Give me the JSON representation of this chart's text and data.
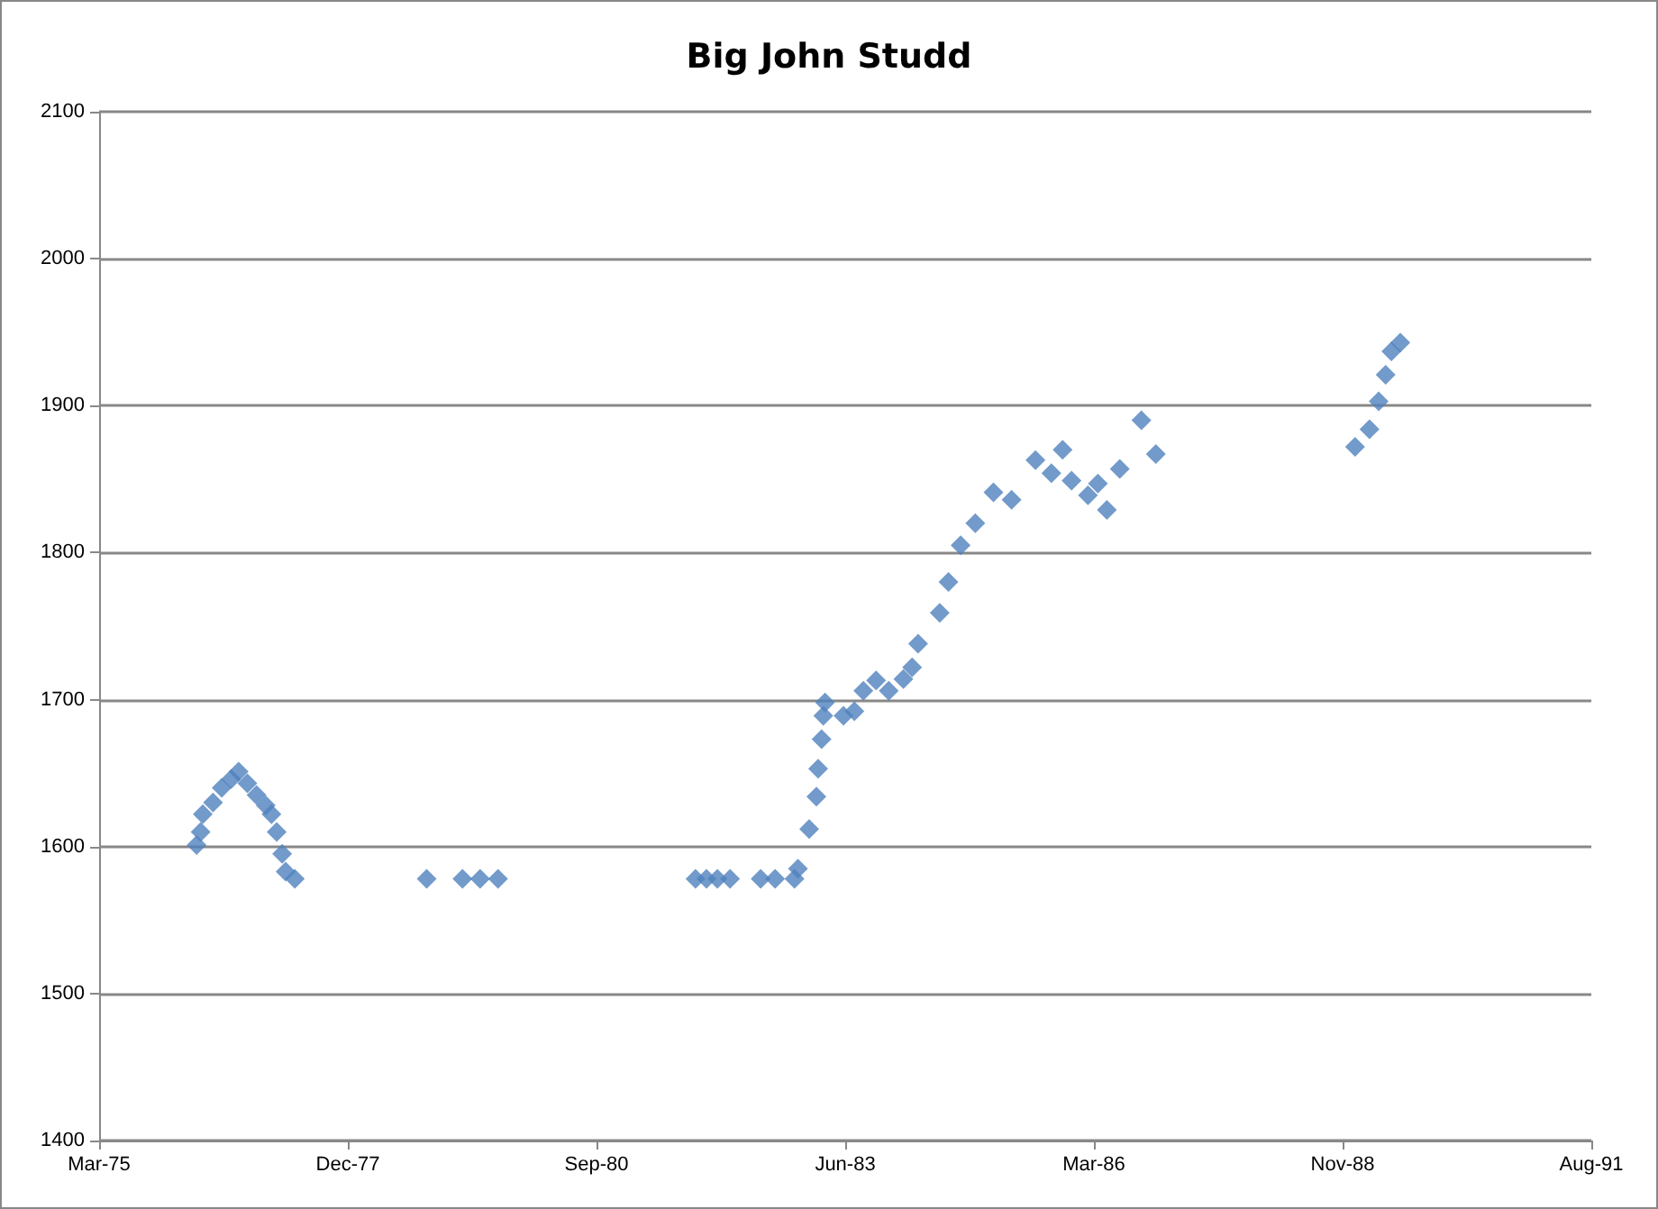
{
  "chart_data": {
    "type": "scatter",
    "title": "Big John Studd",
    "marker": "diamond",
    "grid": "y",
    "xlim": [
      "1975-03-20",
      "1991-08-23"
    ],
    "xticks": [
      {
        "value": "1975-03-20",
        "label": "Mar-75"
      },
      {
        "value": "1977-12-14",
        "label": "Dec-77"
      },
      {
        "value": "1980-09-09",
        "label": "Sep-80"
      },
      {
        "value": "1983-06-06",
        "label": "Jun-83"
      },
      {
        "value": "1986-03-02",
        "label": "Mar-86"
      },
      {
        "value": "1988-11-26",
        "label": "Nov-88"
      },
      {
        "value": "1991-08-23",
        "label": "Aug-91"
      }
    ],
    "ylim": [
      1400,
      2100
    ],
    "yticks": [
      1400,
      1500,
      1600,
      1700,
      1800,
      1900,
      2000,
      2100
    ],
    "series": [
      {
        "color": "#4f81bd",
        "x": [
          "1976-04-15",
          "1976-05-01",
          "1976-05-10",
          "1976-06-20",
          "1976-07-25",
          "1976-09-01",
          "1976-10-01",
          "1976-11-05",
          "1976-12-12",
          "1977-01-18",
          "1977-02-10",
          "1977-03-03",
          "1977-03-25",
          "1977-04-08",
          "1977-05-15",
          "1978-10-27",
          "1979-03-20",
          "1979-05-30",
          "1979-08-10",
          "1981-10-12",
          "1981-11-25",
          "1982-01-08",
          "1982-02-28",
          "1982-07-01",
          "1982-08-28",
          "1982-11-14",
          "1982-11-28",
          "1983-01-12",
          "1983-02-10",
          "1983-02-17",
          "1983-03-03",
          "1983-03-10",
          "1983-03-17",
          "1983-05-30",
          "1983-07-13",
          "1983-08-18",
          "1983-10-08",
          "1983-11-28",
          "1984-01-26",
          "1984-03-01",
          "1984-03-25",
          "1984-06-20",
          "1984-07-25",
          "1984-09-12",
          "1984-11-10",
          "1985-01-22",
          "1985-04-05",
          "1985-07-10",
          "1985-09-12",
          "1985-10-27",
          "1985-12-02",
          "1986-02-06",
          "1986-03-18",
          "1986-04-23",
          "1986-06-14",
          "1986-09-09",
          "1986-11-06",
          "1989-01-15",
          "1989-03-14",
          "1989-04-20",
          "1989-05-18",
          "1989-06-10",
          "1989-07-16"
        ],
        "values": [
          1601,
          1610,
          1622,
          1630,
          1640,
          1646,
          1651,
          1643,
          1635,
          1628,
          1622,
          1610,
          1595,
          1583,
          1578,
          1578,
          1578,
          1578,
          1578,
          1578,
          1578,
          1578,
          1578,
          1578,
          1578,
          1578,
          1585,
          1612,
          1634,
          1653,
          1673,
          1689,
          1698,
          1689,
          1692,
          1706,
          1713,
          1706,
          1714,
          1722,
          1738,
          1759,
          1780,
          1805,
          1820,
          1841,
          1836,
          1863,
          1854,
          1870,
          1849,
          1839,
          1847,
          1829,
          1857,
          1890,
          1867,
          1872,
          1884,
          1903,
          1921,
          1937,
          1943
        ]
      }
    ]
  }
}
